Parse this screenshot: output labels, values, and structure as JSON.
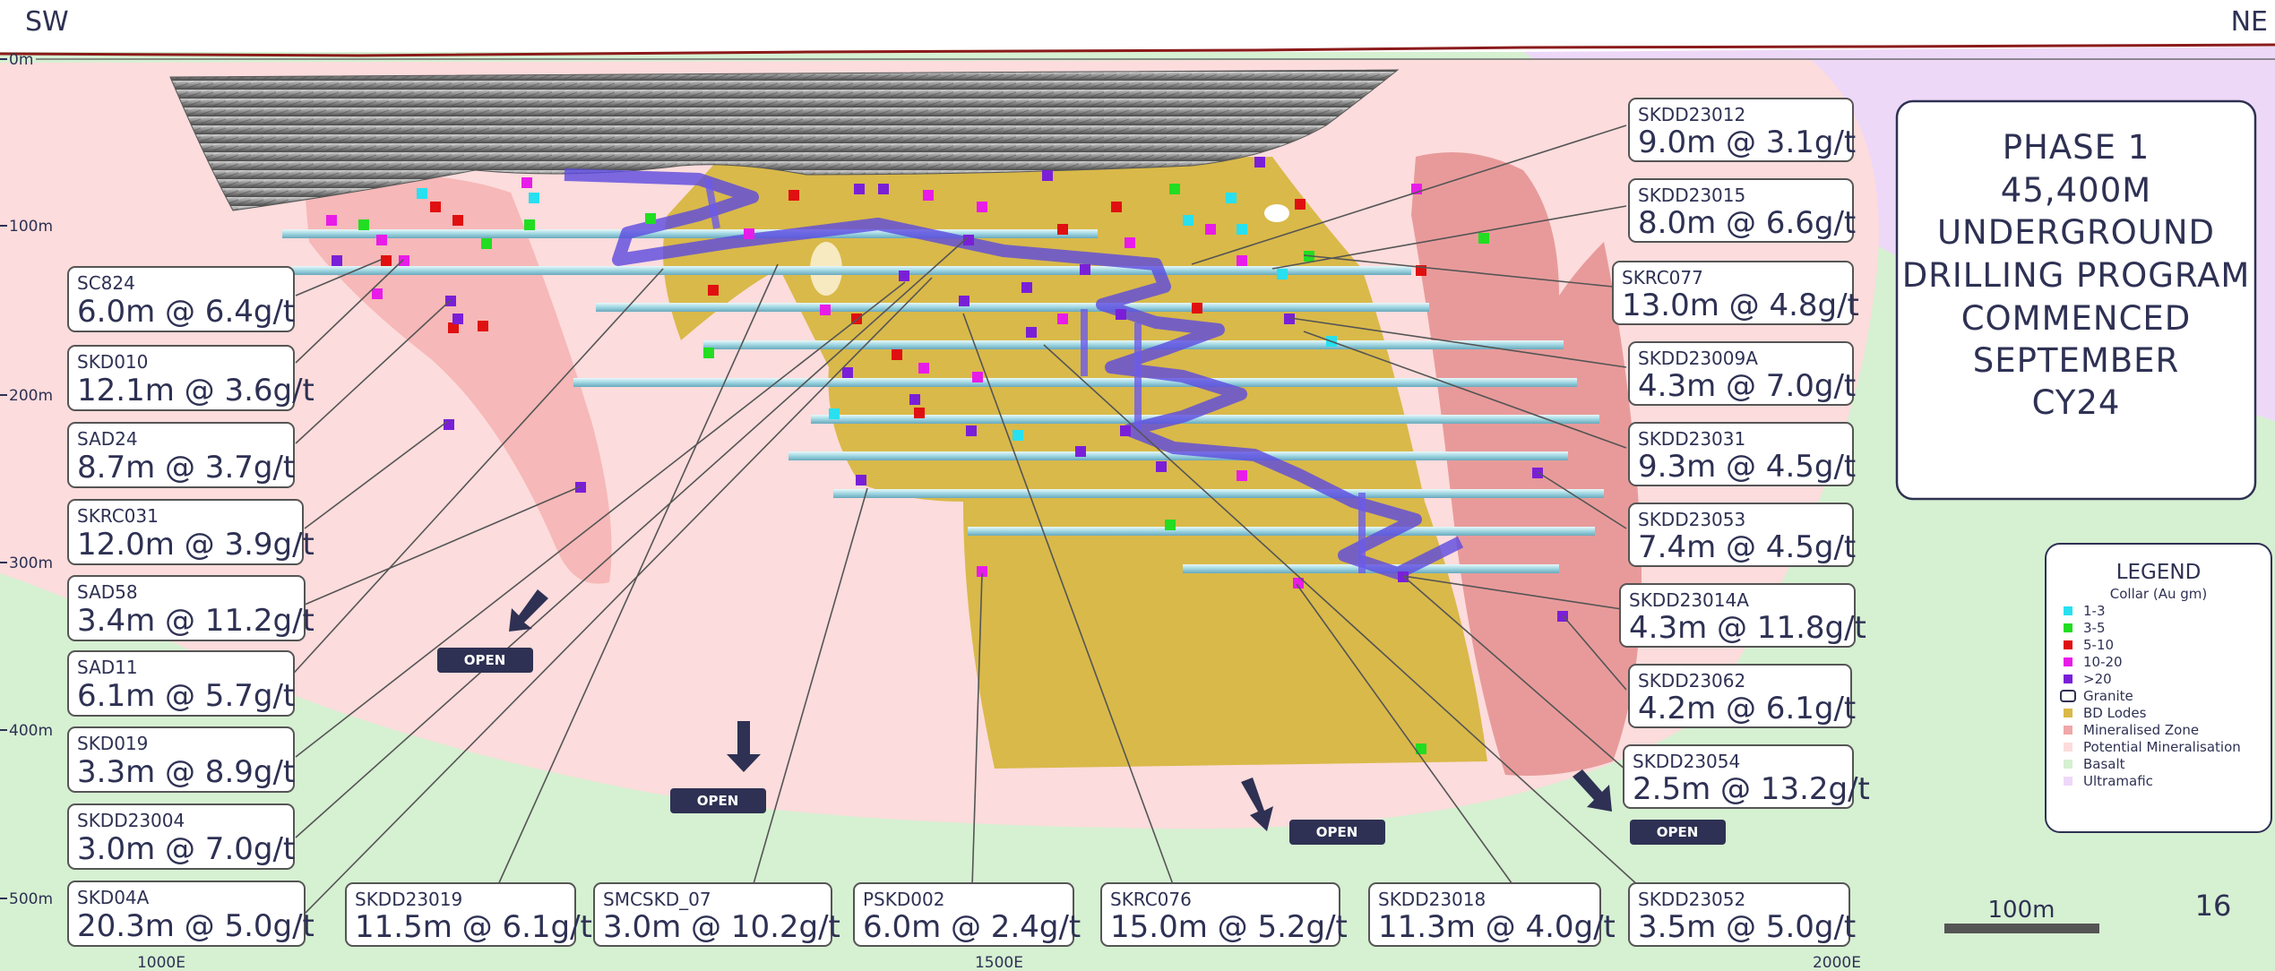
{
  "directions": {
    "left": "SW",
    "right": "NE"
  },
  "depth_labels": [
    "0m",
    "100m",
    "200m",
    "300m",
    "400m",
    "500m"
  ],
  "easting_labels": [
    "1000E",
    "1500E",
    "2000E"
  ],
  "phase_box": {
    "lines": [
      "PHASE 1",
      "45,400M",
      "UNDERGROUND",
      "DRILLING PROGRAM",
      "COMMENCED",
      "SEPTEMBER",
      "CY24"
    ]
  },
  "legend": {
    "title": "LEGEND",
    "subtitle": "Collar (Au gm)",
    "items": [
      {
        "label": "1-3",
        "color": "#28e0f0"
      },
      {
        "label": "3-5",
        "color": "#22dd22"
      },
      {
        "label": "5-10",
        "color": "#e01010"
      },
      {
        "label": "10-20",
        "color": "#e81ce8"
      },
      {
        "label": ">20",
        "color": "#7a1fd8"
      },
      {
        "label": "Granite",
        "color": "#ffffff"
      },
      {
        "label": "BD Lodes",
        "color": "#d9b949"
      },
      {
        "label": "Mineralised Zone",
        "color": "#f0a8a8"
      },
      {
        "label": "Potential Mineralisation",
        "color": "#fcdcdc"
      },
      {
        "label": "Basalt",
        "color": "#d6f0d2"
      },
      {
        "label": "Ultramafic",
        "color": "#eed8f8"
      }
    ]
  },
  "open_labels": [
    "OPEN",
    "OPEN",
    "OPEN",
    "OPEN"
  ],
  "scale_bar": {
    "label": "100m"
  },
  "page_number": "16",
  "intercepts_left": [
    {
      "hole": "SC824",
      "value": "6.0m @ 6.4g/t"
    },
    {
      "hole": "SKD010",
      "value": "12.1m @ 3.6g/t"
    },
    {
      "hole": "SAD24",
      "value": "8.7m @ 3.7g/t"
    },
    {
      "hole": "SKRC031",
      "value": "12.0m @ 3.9g/t"
    },
    {
      "hole": "SAD58",
      "value": "3.4m @ 11.2g/t"
    },
    {
      "hole": "SAD11",
      "value": "6.1m @ 5.7g/t"
    },
    {
      "hole": "SKD019",
      "value": "3.3m @ 8.9g/t"
    },
    {
      "hole": "SKDD23004",
      "value": "3.0m @ 7.0g/t"
    }
  ],
  "intercepts_bottom": [
    {
      "hole": "SKD04A",
      "value": "20.3m @ 5.0g/t"
    },
    {
      "hole": "SKDD23019",
      "value": "11.5m @ 6.1g/t"
    },
    {
      "hole": "SMCSKD_07",
      "value": "3.0m @ 10.2g/t"
    },
    {
      "hole": "PSKD002",
      "value": "6.0m @ 2.4g/t"
    },
    {
      "hole": "SKRC076",
      "value": "15.0m @ 5.2g/t"
    },
    {
      "hole": "SKDD23018",
      "value": "11.3m @ 4.0g/t"
    },
    {
      "hole": "SKDD23052",
      "value": "3.5m @ 5.0g/t"
    }
  ],
  "intercepts_right": [
    {
      "hole": "SKDD23012",
      "value": "9.0m @ 3.1g/t"
    },
    {
      "hole": "SKDD23015",
      "value": "8.0m @ 6.6g/t"
    },
    {
      "hole": "SKRC077",
      "value": "13.0m @ 4.8g/t"
    },
    {
      "hole": "SKDD23009A",
      "value": "4.3m @ 7.0g/t"
    },
    {
      "hole": "SKDD23031",
      "value": "9.3m @ 4.5g/t"
    },
    {
      "hole": "SKDD23053",
      "value": "7.4m @ 4.5g/t"
    },
    {
      "hole": "SKDD23014A",
      "value": "4.3m @ 11.8g/t"
    },
    {
      "hole": "SKDD23062",
      "value": "4.2m @ 6.1g/t"
    },
    {
      "hole": "SKDD23054",
      "value": "2.5m @ 13.2g/t"
    }
  ]
}
